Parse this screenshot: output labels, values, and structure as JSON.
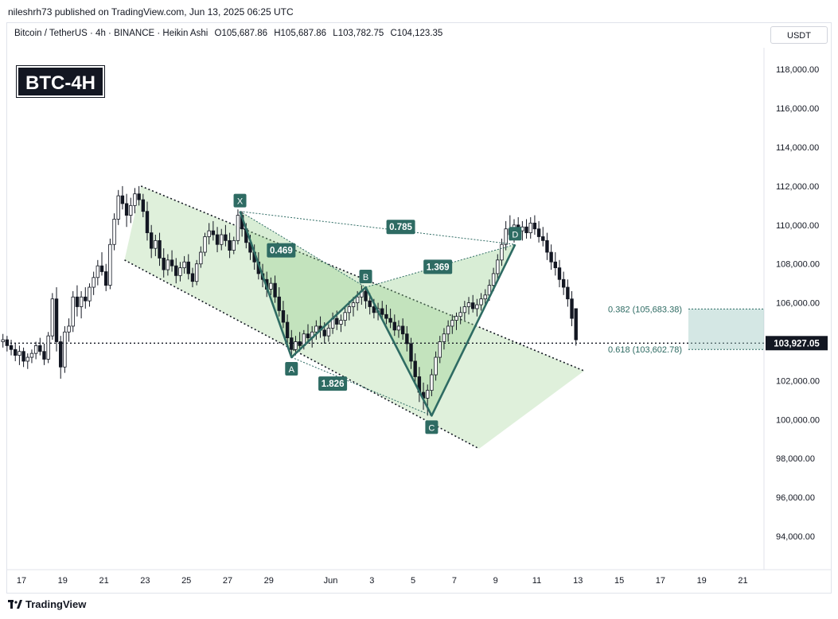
{
  "publisher": "nileshrh73 published on TradingView.com, Jun 13, 2025 06:25 UTC",
  "symbol_info": {
    "name": "Bitcoin / TetherUS · 4h · BINANCE · Heikin Ashi",
    "open": "O105,687.86",
    "high": "H105,687.86",
    "low": "L103,782.75",
    "close": "C104,123.35"
  },
  "badge": "BTC-4H",
  "currency": "USDT",
  "brand": "TradingView",
  "colors": {
    "pattern": "#2e6b63",
    "channel_fill": "#b9deb0",
    "up": "#131722",
    "zone": "#9fc9c4"
  },
  "chart_data": {
    "type": "candlestick",
    "y_axis": {
      "min": 92500,
      "max": 119800,
      "ticks": [
        "118,000.00",
        "116,000.00",
        "114,000.00",
        "112,000.00",
        "110,000.00",
        "108,000.00",
        "106,000.00",
        "104,000.00",
        "102,000.00",
        "100,000.00",
        "98,000.00",
        "96,000.00",
        "94,000.00"
      ],
      "current_price_label": "103,927.05",
      "current_price": 103927.05
    },
    "x_axis": {
      "ticks": [
        {
          "label": "17",
          "day": 17
        },
        {
          "label": "19",
          "day": 19
        },
        {
          "label": "21",
          "day": 21
        },
        {
          "label": "23",
          "day": 23
        },
        {
          "label": "25",
          "day": 25
        },
        {
          "label": "27",
          "day": 27
        },
        {
          "label": "29",
          "day": 29
        },
        {
          "label": "Jun",
          "day": 32
        },
        {
          "label": "3",
          "day": 34
        },
        {
          "label": "5",
          "day": 36
        },
        {
          "label": "7",
          "day": 38
        },
        {
          "label": "9",
          "day": 40
        },
        {
          "label": "11",
          "day": 42
        },
        {
          "label": "13",
          "day": 44
        },
        {
          "label": "15",
          "day": 46
        },
        {
          "label": "17",
          "day": 48
        },
        {
          "label": "19",
          "day": 50
        },
        {
          "label": "21",
          "day": 52
        }
      ]
    },
    "harmonic_points": [
      {
        "label": "X",
        "day": 27.6,
        "price": 110700
      },
      {
        "label": "A",
        "day": 30.1,
        "price": 103200
      },
      {
        "label": "B",
        "day": 33.7,
        "price": 106800
      },
      {
        "label": "C",
        "day": 36.9,
        "price": 100200
      },
      {
        "label": "D",
        "day": 40.95,
        "price": 109000
      }
    ],
    "ratios": [
      {
        "label": "0.785",
        "day": 35.4,
        "price": 109900
      },
      {
        "label": "0.469",
        "day": 29.6,
        "price": 108700
      },
      {
        "label": "1.369",
        "day": 37.2,
        "price": 107850
      },
      {
        "label": "1.826",
        "day": 32.1,
        "price": 101850
      }
    ],
    "fib_levels": [
      {
        "label": "0.382 (105,683.38)",
        "price": 105683.38
      },
      {
        "label": "0.618 (103,602.78)",
        "price": 103602.78
      }
    ],
    "channel": {
      "upper": [
        {
          "day": 22.8,
          "price": 112000
        },
        {
          "day": 44.3,
          "price": 102500
        }
      ],
      "lower": [
        {
          "day": 22.0,
          "price": 108200
        },
        {
          "day": 39.2,
          "price": 98500
        }
      ]
    },
    "candles": [
      [
        16.1,
        104000,
        104400,
        103700,
        104100
      ],
      [
        16.3,
        104100,
        104300,
        103500,
        103800
      ],
      [
        16.5,
        103800,
        104100,
        103300,
        103600
      ],
      [
        16.7,
        103600,
        103900,
        103000,
        103300
      ],
      [
        16.9,
        103300,
        103800,
        102800,
        103500
      ],
      [
        17.1,
        103500,
        103700,
        102700,
        103000
      ],
      [
        17.3,
        103000,
        103400,
        102600,
        103200
      ],
      [
        17.5,
        103200,
        103600,
        102900,
        103400
      ],
      [
        17.7,
        103400,
        104000,
        103100,
        103800
      ],
      [
        17.9,
        103800,
        104200,
        103300,
        103500
      ],
      [
        18.1,
        103500,
        103900,
        102800,
        103100
      ],
      [
        18.3,
        103100,
        104500,
        102900,
        104300
      ],
      [
        18.5,
        104300,
        106500,
        104100,
        106200
      ],
      [
        18.7,
        106200,
        106800,
        103500,
        104000
      ],
      [
        18.9,
        104000,
        104300,
        102100,
        102700
      ],
      [
        19.1,
        102700,
        104800,
        102400,
        104500
      ],
      [
        19.3,
        104500,
        105200,
        104000,
        104800
      ],
      [
        19.5,
        104800,
        106600,
        104500,
        106300
      ],
      [
        19.7,
        106300,
        106900,
        105300,
        105800
      ],
      [
        19.9,
        105800,
        106600,
        105200,
        106300
      ],
      [
        20.1,
        106300,
        106800,
        105700,
        106100
      ],
      [
        20.3,
        106100,
        107000,
        105800,
        106800
      ],
      [
        20.5,
        106800,
        107600,
        106400,
        107300
      ],
      [
        20.7,
        107300,
        108200,
        106900,
        107900
      ],
      [
        20.9,
        107900,
        108600,
        107400,
        107600
      ],
      [
        21.1,
        107600,
        108000,
        106600,
        106900
      ],
      [
        21.3,
        106900,
        109300,
        106700,
        109000
      ],
      [
        21.5,
        109000,
        110600,
        108700,
        110300
      ],
      [
        21.7,
        110300,
        111800,
        110000,
        111500
      ],
      [
        21.9,
        111500,
        112000,
        110800,
        111100
      ],
      [
        22.1,
        111100,
        111600,
        109900,
        110500
      ],
      [
        22.3,
        110500,
        111400,
        110100,
        111000
      ],
      [
        22.5,
        111000,
        111900,
        110600,
        111600
      ],
      [
        22.7,
        111600,
        112000,
        111000,
        111300
      ],
      [
        22.9,
        111300,
        111600,
        110400,
        110700
      ],
      [
        23.1,
        110700,
        111200,
        109200,
        109600
      ],
      [
        23.3,
        109600,
        110000,
        108300,
        108800
      ],
      [
        23.5,
        108800,
        109500,
        108400,
        109200
      ],
      [
        23.7,
        109200,
        109600,
        107900,
        108300
      ],
      [
        23.9,
        108300,
        108800,
        107300,
        107700
      ],
      [
        24.1,
        107700,
        108500,
        107400,
        108200
      ],
      [
        24.3,
        108200,
        108700,
        107600,
        107900
      ],
      [
        24.5,
        107900,
        108300,
        107000,
        107400
      ],
      [
        24.7,
        107400,
        108100,
        107100,
        107800
      ],
      [
        24.9,
        107800,
        108400,
        107500,
        108100
      ],
      [
        25.1,
        108100,
        108500,
        107200,
        107500
      ],
      [
        25.3,
        107500,
        107800,
        106800,
        107100
      ],
      [
        25.5,
        107100,
        108200,
        106900,
        108000
      ],
      [
        25.7,
        108000,
        108900,
        107800,
        108600
      ],
      [
        25.9,
        108600,
        109600,
        108400,
        109400
      ],
      [
        26.1,
        109400,
        110100,
        109000,
        109700
      ],
      [
        26.3,
        109700,
        110200,
        109200,
        109500
      ],
      [
        26.5,
        109500,
        109900,
        108600,
        109000
      ],
      [
        26.7,
        109000,
        109800,
        108700,
        109500
      ],
      [
        26.9,
        109500,
        110000,
        108900,
        109200
      ],
      [
        27.1,
        109200,
        109600,
        108300,
        108700
      ],
      [
        27.3,
        108700,
        109400,
        108500,
        109200
      ],
      [
        27.5,
        109200,
        110800,
        109000,
        110500
      ],
      [
        27.7,
        110500,
        110700,
        109400,
        109800
      ],
      [
        27.9,
        109800,
        110100,
        108800,
        109100
      ],
      [
        28.1,
        109100,
        109500,
        108200,
        108600
      ],
      [
        28.3,
        108600,
        109000,
        107700,
        108100
      ],
      [
        28.5,
        108100,
        108600,
        107200,
        107500
      ],
      [
        28.7,
        107500,
        108000,
        106800,
        107200
      ],
      [
        28.9,
        107200,
        107600,
        106300,
        106700
      ],
      [
        29.1,
        106700,
        107300,
        106400,
        107000
      ],
      [
        29.3,
        107000,
        107400,
        106000,
        106300
      ],
      [
        29.5,
        106300,
        106800,
        105300,
        105600
      ],
      [
        29.7,
        105600,
        106100,
        104700,
        105000
      ],
      [
        29.9,
        105000,
        105400,
        103800,
        104200
      ],
      [
        30.1,
        104200,
        104600,
        103200,
        103600
      ],
      [
        30.3,
        103600,
        104300,
        103300,
        104000
      ],
      [
        30.5,
        104000,
        104500,
        103500,
        103800
      ],
      [
        30.7,
        103800,
        104600,
        103600,
        104400
      ],
      [
        30.9,
        104400,
        104900,
        103900,
        104200
      ],
      [
        31.1,
        104200,
        104800,
        103700,
        104500
      ],
      [
        31.3,
        104500,
        105100,
        104100,
        104800
      ],
      [
        31.5,
        104800,
        105300,
        104200,
        104600
      ],
      [
        31.7,
        104600,
        105000,
        103900,
        104300
      ],
      [
        31.9,
        104300,
        104900,
        104000,
        104700
      ],
      [
        32.1,
        104700,
        105500,
        104400,
        105200
      ],
      [
        32.3,
        105200,
        105600,
        104600,
        104900
      ],
      [
        32.5,
        104900,
        105400,
        104500,
        105100
      ],
      [
        32.7,
        105100,
        105800,
        104800,
        105500
      ],
      [
        32.9,
        105500,
        106100,
        105100,
        105800
      ],
      [
        33.1,
        105800,
        106300,
        105300,
        106000
      ],
      [
        33.3,
        106000,
        106600,
        105600,
        106300
      ],
      [
        33.5,
        106300,
        106900,
        105900,
        106600
      ],
      [
        33.7,
        106600,
        106800,
        105700,
        106100
      ],
      [
        33.9,
        106100,
        106500,
        105400,
        105800
      ],
      [
        34.1,
        105800,
        106200,
        105200,
        105500
      ],
      [
        34.3,
        105500,
        106000,
        105100,
        105700
      ],
      [
        34.5,
        105700,
        106100,
        105200,
        105400
      ],
      [
        34.7,
        105400,
        105900,
        104900,
        105200
      ],
      [
        34.9,
        105200,
        105700,
        104700,
        105000
      ],
      [
        35.1,
        105000,
        105400,
        104300,
        104600
      ],
      [
        35.3,
        104600,
        105100,
        104200,
        104800
      ],
      [
        35.5,
        104800,
        105200,
        104100,
        104400
      ],
      [
        35.7,
        104400,
        104800,
        103500,
        103900
      ],
      [
        35.9,
        103900,
        104200,
        102600,
        103000
      ],
      [
        36.1,
        103000,
        103400,
        101800,
        102200
      ],
      [
        36.3,
        102200,
        102700,
        100900,
        101400
      ],
      [
        36.5,
        101400,
        101900,
        100500,
        101100
      ],
      [
        36.7,
        101100,
        101800,
        100200,
        101500
      ],
      [
        36.9,
        101500,
        102600,
        101200,
        102300
      ],
      [
        37.1,
        102300,
        103500,
        102000,
        103200
      ],
      [
        37.3,
        103200,
        104300,
        102900,
        104000
      ],
      [
        37.5,
        104000,
        104700,
        103600,
        104400
      ],
      [
        37.7,
        104400,
        105100,
        104000,
        104800
      ],
      [
        37.9,
        104800,
        105400,
        104400,
        105100
      ],
      [
        38.1,
        105100,
        105500,
        104600,
        105300
      ],
      [
        38.3,
        105300,
        105800,
        104900,
        105500
      ],
      [
        38.5,
        105500,
        106100,
        105100,
        105800
      ],
      [
        38.7,
        105800,
        106300,
        105400,
        106000
      ],
      [
        38.9,
        106000,
        106400,
        105500,
        105700
      ],
      [
        39.1,
        105700,
        106200,
        105300,
        105900
      ],
      [
        39.3,
        105900,
        106500,
        105600,
        106200
      ],
      [
        39.5,
        106200,
        106700,
        105800,
        106400
      ],
      [
        39.7,
        106400,
        107200,
        106100,
        106900
      ],
      [
        39.9,
        106900,
        107800,
        106600,
        107500
      ],
      [
        40.1,
        107500,
        108500,
        107200,
        108200
      ],
      [
        40.3,
        108200,
        109300,
        107900,
        109000
      ],
      [
        40.5,
        109000,
        110200,
        108700,
        109800
      ],
      [
        40.7,
        109800,
        110500,
        109200,
        109500
      ],
      [
        40.9,
        109500,
        110300,
        109100,
        110000
      ],
      [
        41.1,
        110000,
        110400,
        109300,
        109700
      ],
      [
        41.3,
        109700,
        110200,
        109200,
        109900
      ],
      [
        41.5,
        109900,
        110300,
        109300,
        109600
      ],
      [
        41.7,
        109600,
        110400,
        109300,
        110100
      ],
      [
        41.9,
        110100,
        110500,
        109500,
        109800
      ],
      [
        42.1,
        109800,
        110200,
        109100,
        109400
      ],
      [
        42.3,
        109400,
        109900,
        108900,
        109200
      ],
      [
        42.5,
        109200,
        109600,
        108200,
        108600
      ],
      [
        42.7,
        108600,
        109000,
        107700,
        108100
      ],
      [
        42.9,
        108100,
        108600,
        107400,
        107800
      ],
      [
        43.1,
        107800,
        108200,
        106800,
        107200
      ],
      [
        43.3,
        107200,
        107600,
        106400,
        106800
      ],
      [
        43.5,
        106800,
        107200,
        105800,
        106200
      ],
      [
        43.7,
        106200,
        106600,
        104800,
        105200
      ],
      [
        43.9,
        105700,
        105700,
        103800,
        104100
      ]
    ]
  }
}
